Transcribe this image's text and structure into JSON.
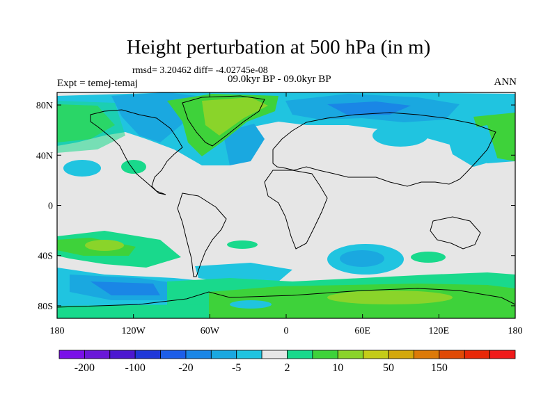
{
  "title": "Height perturbation at 500 hPa (in m)",
  "stats": "rmsd= 3.20462 diff= -4.02745e-08",
  "period": "09.0kyr BP - 09.0kyr BP",
  "expt": "Expt = temej-temaj",
  "season": "ANN",
  "map": {
    "lat_labels": [
      {
        "value": 80,
        "label": "80N"
      },
      {
        "value": 40,
        "label": "40N"
      },
      {
        "value": 0,
        "label": "0"
      },
      {
        "value": -40,
        "label": "40S"
      },
      {
        "value": -80,
        "label": "80S"
      }
    ],
    "lon_labels": [
      {
        "value": -180,
        "label": "180"
      },
      {
        "value": -120,
        "label": "120W"
      },
      {
        "value": -60,
        "label": "60W"
      },
      {
        "value": 0,
        "label": "0"
      },
      {
        "value": 60,
        "label": "60E"
      },
      {
        "value": 120,
        "label": "120E"
      },
      {
        "value": 180,
        "label": "180"
      }
    ],
    "background_color": "#e6e6e6"
  },
  "colorbar": {
    "colors": [
      "#7a10e8",
      "#6a18d8",
      "#4c18d0",
      "#2038d8",
      "#1d5ee8",
      "#1a86e6",
      "#1aa8e0",
      "#20c4e0",
      "#e6e6e6",
      "#19d98c",
      "#3ed23a",
      "#8ad42a",
      "#c4cc18",
      "#d4a80c",
      "#dc7a08",
      "#e04a06",
      "#e82808",
      "#f01a1a"
    ],
    "labels": [
      "-200",
      "-100",
      "-20",
      "-5",
      "2",
      "10",
      "50",
      "150"
    ]
  }
}
